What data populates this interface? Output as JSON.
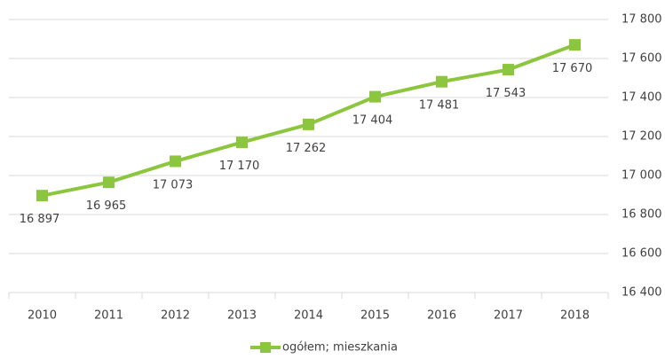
{
  "chart_data": {
    "type": "line",
    "categories": [
      "2010",
      "2011",
      "2012",
      "2013",
      "2014",
      "2015",
      "2016",
      "2017",
      "2018"
    ],
    "series": [
      {
        "name": "ogółem; mieszkania",
        "color": "#8cc63f",
        "values": [
          16897,
          16965,
          17073,
          17170,
          17262,
          17404,
          17481,
          17543,
          17670
        ],
        "value_labels": [
          "16 897",
          "16 965",
          "17 073",
          "17 170",
          "17 262",
          "17 404",
          "17 481",
          "17 543",
          "17 670"
        ]
      }
    ],
    "ylim": [
      16400,
      17800
    ],
    "yticks": [
      {
        "value": 16400,
        "label": "16 400"
      },
      {
        "value": 16600,
        "label": "16 600"
      },
      {
        "value": 16800,
        "label": "16 800"
      },
      {
        "value": 17000,
        "label": "17 000"
      },
      {
        "value": 17200,
        "label": "17 200"
      },
      {
        "value": 17400,
        "label": "17 400"
      },
      {
        "value": 17600,
        "label": "17 600"
      },
      {
        "value": 17800,
        "label": "17 800"
      }
    ],
    "grid": true,
    "legend": "bottom"
  }
}
